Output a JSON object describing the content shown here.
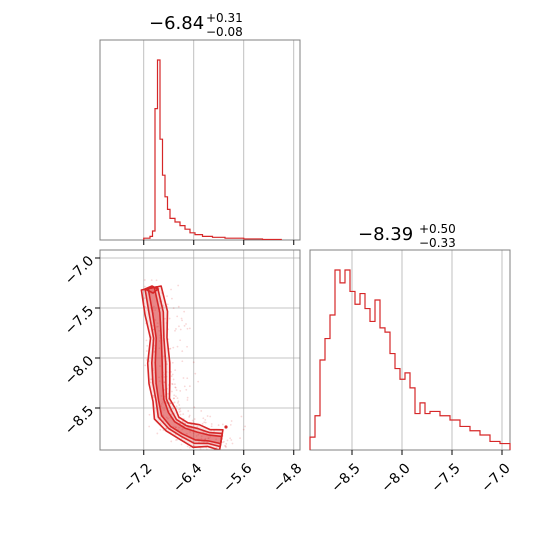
{
  "colors": {
    "accent": "#d62728",
    "grid": "#b0b0b0",
    "frame": "#808080"
  },
  "chart_data": [
    {
      "type": "histogram",
      "panel": "param-1-marginal",
      "title": {
        "median": "−6.84",
        "plus": "+0.31",
        "minus": "−0.08"
      },
      "xlim": [
        -7.9,
        -4.7
      ],
      "xticks": [
        -7.2,
        -6.4,
        -5.6,
        -4.8
      ],
      "grid": true,
      "bins": [
        {
          "x0": -7.2,
          "x1": -7.1,
          "count": 0.01
        },
        {
          "x0": -7.1,
          "x1": -7.06,
          "count": 0.02
        },
        {
          "x0": -7.06,
          "x1": -7.02,
          "count": 0.05
        },
        {
          "x0": -7.02,
          "x1": -6.98,
          "count": 0.73
        },
        {
          "x0": -6.98,
          "x1": -6.94,
          "count": 1.0
        },
        {
          "x0": -6.94,
          "x1": -6.9,
          "count": 0.56
        },
        {
          "x0": -6.9,
          "x1": -6.86,
          "count": 0.36
        },
        {
          "x0": -6.86,
          "x1": -6.82,
          "count": 0.24
        },
        {
          "x0": -6.82,
          "x1": -6.78,
          "count": 0.17
        },
        {
          "x0": -6.78,
          "x1": -6.7,
          "count": 0.12
        },
        {
          "x0": -6.7,
          "x1": -6.62,
          "count": 0.1
        },
        {
          "x0": -6.62,
          "x1": -6.54,
          "count": 0.08
        },
        {
          "x0": -6.54,
          "x1": -6.46,
          "count": 0.06
        },
        {
          "x0": -6.46,
          "x1": -6.38,
          "count": 0.04
        },
        {
          "x0": -6.38,
          "x1": -6.26,
          "count": 0.03
        },
        {
          "x0": -6.26,
          "x1": -6.1,
          "count": 0.02
        },
        {
          "x0": -6.1,
          "x1": -5.9,
          "count": 0.015
        },
        {
          "x0": -5.9,
          "x1": -5.6,
          "count": 0.01
        },
        {
          "x0": -5.6,
          "x1": -5.3,
          "count": 0.006
        },
        {
          "x0": -5.3,
          "x1": -5.0,
          "count": 0.003
        }
      ]
    },
    {
      "type": "histogram",
      "panel": "param-2-marginal",
      "title": {
        "median": "−8.39",
        "plus": "+0.50",
        "minus": "−0.33"
      },
      "xlim": [
        -8.92,
        -6.92
      ],
      "xticks": [
        -8.5,
        -8.0,
        -7.5,
        -7.0
      ],
      "grid": true,
      "bins": [
        {
          "x0": -8.92,
          "x1": -8.87,
          "count": 0.06
        },
        {
          "x0": -8.87,
          "x1": -8.82,
          "count": 0.16
        },
        {
          "x0": -8.82,
          "x1": -8.77,
          "count": 0.42
        },
        {
          "x0": -8.77,
          "x1": -8.72,
          "count": 0.52
        },
        {
          "x0": -8.72,
          "x1": -8.67,
          "count": 0.63
        },
        {
          "x0": -8.67,
          "x1": -8.62,
          "count": 0.84
        },
        {
          "x0": -8.62,
          "x1": -8.57,
          "count": 0.78
        },
        {
          "x0": -8.57,
          "x1": -8.52,
          "count": 0.84
        },
        {
          "x0": -8.52,
          "x1": -8.47,
          "count": 0.74
        },
        {
          "x0": -8.47,
          "x1": -8.42,
          "count": 0.68
        },
        {
          "x0": -8.42,
          "x1": -8.37,
          "count": 0.73
        },
        {
          "x0": -8.37,
          "x1": -8.32,
          "count": 0.66
        },
        {
          "x0": -8.32,
          "x1": -8.27,
          "count": 0.6
        },
        {
          "x0": -8.27,
          "x1": -8.22,
          "count": 0.7
        },
        {
          "x0": -8.22,
          "x1": -8.17,
          "count": 0.57
        },
        {
          "x0": -8.17,
          "x1": -8.12,
          "count": 0.55
        },
        {
          "x0": -8.12,
          "x1": -8.07,
          "count": 0.45
        },
        {
          "x0": -8.07,
          "x1": -8.02,
          "count": 0.38
        },
        {
          "x0": -8.02,
          "x1": -7.97,
          "count": 0.33
        },
        {
          "x0": -7.97,
          "x1": -7.92,
          "count": 0.36
        },
        {
          "x0": -7.92,
          "x1": -7.87,
          "count": 0.29
        },
        {
          "x0": -7.87,
          "x1": -7.82,
          "count": 0.17
        },
        {
          "x0": -7.82,
          "x1": -7.77,
          "count": 0.22
        },
        {
          "x0": -7.77,
          "x1": -7.72,
          "count": 0.17
        },
        {
          "x0": -7.72,
          "x1": -7.62,
          "count": 0.18
        },
        {
          "x0": -7.62,
          "x1": -7.52,
          "count": 0.16
        },
        {
          "x0": -7.52,
          "x1": -7.42,
          "count": 0.14
        },
        {
          "x0": -7.42,
          "x1": -7.32,
          "count": 0.11
        },
        {
          "x0": -7.32,
          "x1": -7.22,
          "count": 0.09
        },
        {
          "x0": -7.22,
          "x1": -7.12,
          "count": 0.07
        },
        {
          "x0": -7.12,
          "x1": -7.02,
          "count": 0.04
        },
        {
          "x0": -7.02,
          "x1": -6.92,
          "count": 0.03
        }
      ]
    },
    {
      "type": "scatter",
      "panel": "joint-2d",
      "xlim": [
        -7.9,
        -4.7
      ],
      "ylim": [
        -8.92,
        -6.92
      ],
      "xticks": [
        -7.2,
        -6.4,
        -5.6,
        -4.8
      ],
      "yticks": [
        -7.0,
        -7.5,
        -8.0,
        -8.5
      ],
      "grid": true,
      "contour_spine": [
        [
          -7.08,
          -7.3
        ],
        [
          -7.0,
          -7.55
        ],
        [
          -6.96,
          -7.8
        ],
        [
          -6.96,
          -8.05
        ],
        [
          -6.95,
          -8.25
        ],
        [
          -6.92,
          -8.42
        ],
        [
          -6.86,
          -8.56
        ],
        [
          -6.74,
          -8.66
        ],
        [
          -6.56,
          -8.73
        ],
        [
          -6.36,
          -8.78
        ],
        [
          -6.16,
          -8.8
        ],
        [
          -5.96,
          -8.82
        ]
      ],
      "contour_levels": [
        {
          "level": "outer",
          "width_x": 0.16,
          "width_y": 0.1
        },
        {
          "level": "middle",
          "width_x": 0.1,
          "width_y": 0.065
        },
        {
          "level": "inner",
          "width_x": 0.05,
          "width_y": 0.035
        }
      ]
    }
  ]
}
